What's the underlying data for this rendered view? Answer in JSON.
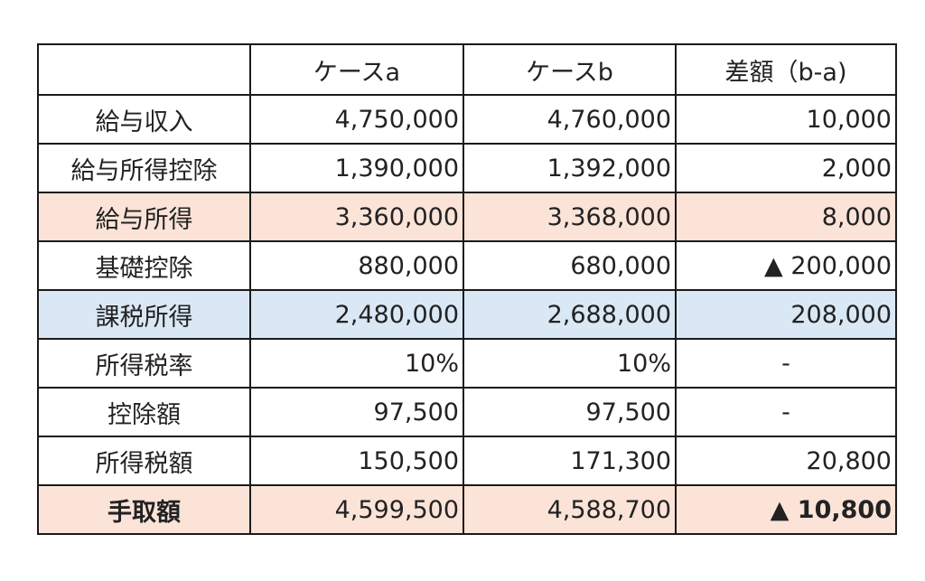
{
  "table": {
    "header": [
      "",
      "ケースa",
      "ケースb",
      "差額（b-a)"
    ],
    "rows": [
      {
        "label": "給与収入",
        "a": "4,750,000",
        "b": "4,760,000",
        "diff": "10,000"
      },
      {
        "label": "給与所得控除",
        "a": "1,390,000",
        "b": "1,392,000",
        "diff": "2,000"
      },
      {
        "label": "給与所得",
        "a": "3,360,000",
        "b": "3,368,000",
        "diff": "8,000"
      },
      {
        "label": "基礎控除",
        "a": "880,000",
        "b": "680,000",
        "diff": "▲ 200,000"
      },
      {
        "label": "課税所得",
        "a": "2,480,000",
        "b": "2,688,000",
        "diff": "208,000"
      },
      {
        "label": "所得税率",
        "a": "10%",
        "b": "10%",
        "diff": "-"
      },
      {
        "label": "控除額",
        "a": "97,500",
        "b": "97,500",
        "diff": "-"
      },
      {
        "label": "所得税額",
        "a": "150,500",
        "b": "171,300",
        "diff": "20,800"
      },
      {
        "label": "手取額",
        "a": "4,599,500",
        "b": "4,588,700",
        "diff": "▲ 10,800"
      }
    ],
    "colors": {
      "highlight_pink": "#fbe3d8",
      "highlight_blue": "#dae8f5",
      "border": "#1a1a1a"
    }
  }
}
